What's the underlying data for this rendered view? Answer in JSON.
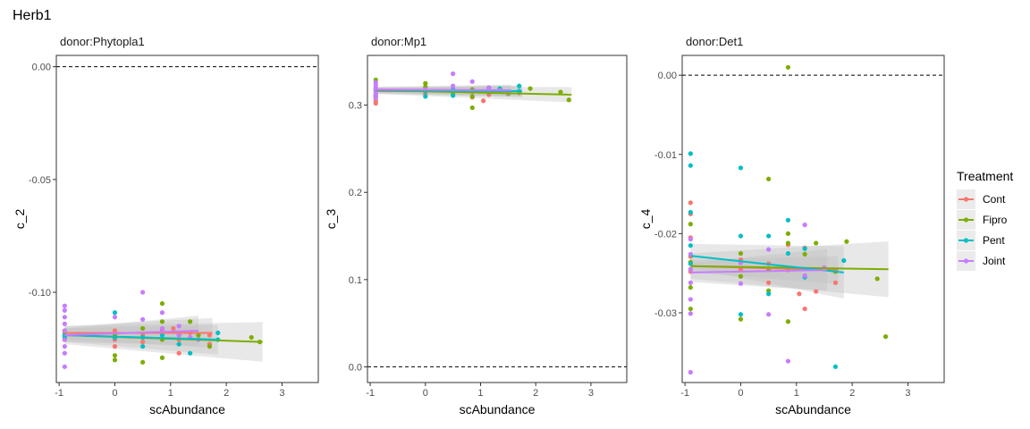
{
  "title": "Herb1",
  "colors": {
    "Cont": "#F8766D",
    "Fipro": "#7CAE00",
    "Pent": "#00BFC4",
    "Joint": "#C77CFF",
    "ribbon": "#bdbdbd",
    "panel_border": "#333333",
    "reference_line": "#000000"
  },
  "legend": {
    "title": "Treatment",
    "entries": [
      "Cont",
      "Fipro",
      "Pent",
      "Joint"
    ],
    "placement": "right"
  },
  "chart_data": [
    {
      "type": "scatter",
      "title": "donor:Phytopla1",
      "xlabel": "scAbundance",
      "ylabel": "c_2",
      "xlim": [
        -1.05,
        3.65
      ],
      "ylim": [
        -0.14,
        0.005
      ],
      "xticks": [
        -1,
        0,
        1,
        2,
        3
      ],
      "yticks": [
        0.0,
        -0.05,
        -0.1
      ],
      "ytick_labels": [
        "0.00",
        "-0.05",
        "-0.10"
      ],
      "reference_line_y": 0,
      "grid": false,
      "series": [
        {
          "name": "Cont",
          "points": [
            [
              -0.9,
              -0.118
            ],
            [
              -0.9,
              -0.121
            ],
            [
              0,
              -0.117
            ],
            [
              0,
              -0.121
            ],
            [
              0,
              -0.124
            ],
            [
              0.5,
              -0.119
            ],
            [
              0.5,
              -0.122
            ],
            [
              0.85,
              -0.117
            ],
            [
              1.05,
              -0.116
            ],
            [
              1.15,
              -0.121
            ],
            [
              1.15,
              -0.127
            ],
            [
              1.35,
              -0.118
            ],
            [
              1.7,
              -0.119
            ],
            [
              1.7,
              -0.123
            ]
          ],
          "fit": {
            "x": [
              -0.9,
              1.75
            ],
            "y": [
              -0.118,
              -0.118
            ],
            "ci": 0.003
          }
        },
        {
          "name": "Fipro",
          "points": [
            [
              -0.9,
              -0.117
            ],
            [
              -0.9,
              -0.119
            ],
            [
              0,
              -0.119
            ],
            [
              0,
              -0.128
            ],
            [
              0,
              -0.13
            ],
            [
              0.5,
              -0.116
            ],
            [
              0.5,
              -0.131
            ],
            [
              0.85,
              -0.105
            ],
            [
              0.85,
              -0.113
            ],
            [
              0.85,
              -0.121
            ],
            [
              0.85,
              -0.129
            ],
            [
              1.35,
              -0.113
            ],
            [
              1.5,
              -0.119
            ],
            [
              1.7,
              -0.124
            ],
            [
              2.45,
              -0.12
            ],
            [
              2.6,
              -0.122
            ]
          ],
          "fit": {
            "x": [
              -0.9,
              2.65
            ],
            "y": [
              -0.119,
              -0.122
            ],
            "ci": 0.004
          }
        },
        {
          "name": "Pent",
          "points": [
            [
              -0.9,
              -0.119
            ],
            [
              -0.9,
              -0.12
            ],
            [
              0,
              -0.109
            ],
            [
              0,
              -0.12
            ],
            [
              0.5,
              -0.12
            ],
            [
              0.5,
              -0.124
            ],
            [
              0.85,
              -0.119
            ],
            [
              1.15,
              -0.119
            ],
            [
              1.15,
              -0.123
            ],
            [
              1.35,
              -0.127
            ],
            [
              1.85,
              -0.118
            ],
            [
              1.85,
              -0.121
            ]
          ],
          "fit": {
            "x": [
              -0.9,
              1.85
            ],
            "y": [
              -0.119,
              -0.121
            ],
            "ci": 0.003
          }
        },
        {
          "name": "Joint",
          "points": [
            [
              -0.9,
              -0.106
            ],
            [
              -0.9,
              -0.108
            ],
            [
              -0.9,
              -0.111
            ],
            [
              -0.9,
              -0.114
            ],
            [
              -0.9,
              -0.117
            ],
            [
              -0.9,
              -0.121
            ],
            [
              -0.9,
              -0.124
            ],
            [
              -0.9,
              -0.127
            ],
            [
              -0.9,
              -0.133
            ],
            [
              0,
              -0.111
            ],
            [
              0.5,
              -0.1
            ],
            [
              0.5,
              -0.112
            ],
            [
              0.85,
              -0.109
            ],
            [
              0.85,
              -0.116
            ],
            [
              1.15,
              -0.115
            ],
            [
              1.15,
              -0.119
            ],
            [
              1.35,
              -0.12
            ],
            [
              1.5,
              -0.121
            ]
          ],
          "fit": {
            "x": [
              -0.9,
              1.5
            ],
            "y": [
              -0.119,
              -0.117
            ],
            "ci": 0.003
          }
        }
      ]
    },
    {
      "type": "scatter",
      "title": "donor:Mp1",
      "xlabel": "scAbundance",
      "ylabel": "c_3",
      "xlim": [
        -1.05,
        3.65
      ],
      "ylim": [
        -0.018,
        0.357
      ],
      "xticks": [
        -1,
        0,
        1,
        2,
        3
      ],
      "yticks": [
        0.0,
        0.1,
        0.2,
        0.3
      ],
      "ytick_labels": [
        "0.0",
        "0.1",
        "0.2",
        "0.3"
      ],
      "reference_line_y": 0,
      "grid": false,
      "series": [
        {
          "name": "Cont",
          "points": [
            [
              -0.9,
              0.302
            ],
            [
              -0.9,
              0.305
            ],
            [
              -0.9,
              0.31
            ],
            [
              -0.9,
              0.316
            ],
            [
              0,
              0.313
            ],
            [
              0,
              0.318
            ],
            [
              0.5,
              0.311
            ],
            [
              0.5,
              0.317
            ],
            [
              0.85,
              0.309
            ],
            [
              1.05,
              0.305
            ],
            [
              1.15,
              0.312
            ],
            [
              1.35,
              0.318
            ],
            [
              1.7,
              0.314
            ]
          ],
          "fit": {
            "x": [
              -0.9,
              1.75
            ],
            "y": [
              0.316,
              0.316
            ],
            "ci": 0.003
          }
        },
        {
          "name": "Fipro",
          "points": [
            [
              -0.9,
              0.329
            ],
            [
              -0.9,
              0.31
            ],
            [
              0,
              0.325
            ],
            [
              0,
              0.321
            ],
            [
              0.5,
              0.318
            ],
            [
              0.5,
              0.314
            ],
            [
              0.85,
              0.297
            ],
            [
              0.85,
              0.31
            ],
            [
              0.85,
              0.318
            ],
            [
              1.35,
              0.316
            ],
            [
              1.5,
              0.313
            ],
            [
              1.9,
              0.319
            ],
            [
              2.45,
              0.315
            ],
            [
              2.6,
              0.306
            ]
          ],
          "fit": {
            "x": [
              -0.9,
              2.65
            ],
            "y": [
              0.317,
              0.312
            ],
            "ci": 0.004
          }
        },
        {
          "name": "Pent",
          "points": [
            [
              -0.9,
              0.318
            ],
            [
              -0.9,
              0.312
            ],
            [
              0,
              0.316
            ],
            [
              0,
              0.31
            ],
            [
              0.5,
              0.311
            ],
            [
              0.5,
              0.318
            ],
            [
              0.85,
              0.316
            ],
            [
              1.15,
              0.315
            ],
            [
              1.15,
              0.32
            ],
            [
              1.35,
              0.319
            ],
            [
              1.7,
              0.322
            ],
            [
              1.7,
              0.316
            ]
          ],
          "fit": {
            "x": [
              -0.9,
              1.75
            ],
            "y": [
              0.317,
              0.316
            ],
            "ci": 0.003
          }
        },
        {
          "name": "Joint",
          "points": [
            [
              -0.9,
              0.326
            ],
            [
              -0.9,
              0.323
            ],
            [
              -0.9,
              0.32
            ],
            [
              -0.9,
              0.318
            ],
            [
              -0.9,
              0.315
            ],
            [
              -0.9,
              0.312
            ],
            [
              -0.9,
              0.308
            ],
            [
              0,
              0.318
            ],
            [
              0.5,
              0.336
            ],
            [
              0.5,
              0.322
            ],
            [
              0.85,
              0.327
            ],
            [
              0.85,
              0.315
            ],
            [
              1.15,
              0.32
            ],
            [
              1.35,
              0.317
            ],
            [
              1.5,
              0.314
            ]
          ],
          "fit": {
            "x": [
              -0.9,
              1.55
            ],
            "y": [
              0.318,
              0.317
            ],
            "ci": 0.003
          }
        }
      ]
    },
    {
      "type": "scatter",
      "title": "donor:Det1",
      "xlabel": "scAbundance",
      "ylabel": "c_4",
      "xlim": [
        -1.05,
        3.65
      ],
      "ylim": [
        -0.0388,
        0.0025
      ],
      "xticks": [
        -1,
        0,
        1,
        2,
        3
      ],
      "yticks": [
        0.0,
        -0.01,
        -0.02,
        -0.03
      ],
      "ytick_labels": [
        "0.00",
        "-0.01",
        "-0.02",
        "-0.03"
      ],
      "reference_line_y": 0,
      "grid": false,
      "series": [
        {
          "name": "Cont",
          "points": [
            [
              -0.9,
              -0.0161
            ],
            [
              -0.9,
              -0.0175
            ],
            [
              -0.9,
              -0.0205
            ],
            [
              -0.9,
              -0.0229
            ],
            [
              -0.9,
              -0.0248
            ],
            [
              0,
              -0.0233
            ],
            [
              0,
              -0.0245
            ],
            [
              0.5,
              -0.0238
            ],
            [
              0.5,
              -0.0262
            ],
            [
              0.85,
              -0.0214
            ],
            [
              0.85,
              -0.0246
            ],
            [
              1.05,
              -0.0276
            ],
            [
              1.15,
              -0.0218
            ],
            [
              1.15,
              -0.0295
            ],
            [
              1.35,
              -0.0273
            ],
            [
              1.7,
              -0.0262
            ]
          ],
          "fit": {
            "x": [
              -0.9,
              1.75
            ],
            "y": [
              -0.0241,
              -0.0246
            ],
            "ci": 0.0008
          }
        },
        {
          "name": "Fipro",
          "points": [
            [
              -0.9,
              -0.0188
            ],
            [
              -0.9,
              -0.0236
            ],
            [
              -0.9,
              -0.0268
            ],
            [
              -0.9,
              -0.0295
            ],
            [
              0,
              -0.0225
            ],
            [
              0,
              -0.0308
            ],
            [
              0,
              -0.0254
            ],
            [
              0.5,
              -0.0131
            ],
            [
              0.5,
              -0.0245
            ],
            [
              0.5,
              -0.0272
            ],
            [
              0.85,
              0.001
            ],
            [
              0.85,
              -0.02
            ],
            [
              0.85,
              -0.0212
            ],
            [
              0.85,
              -0.0311
            ],
            [
              1.15,
              -0.0226
            ],
            [
              1.35,
              -0.0212
            ],
            [
              1.7,
              -0.0248
            ],
            [
              1.9,
              -0.021
            ],
            [
              2.45,
              -0.0257
            ],
            [
              2.6,
              -0.033
            ]
          ],
          "fit": {
            "x": [
              -0.9,
              2.65
            ],
            "y": [
              -0.0241,
              -0.0245
            ],
            "ci": 0.0016
          }
        },
        {
          "name": "Pent",
          "points": [
            [
              -0.9,
              -0.0099
            ],
            [
              -0.9,
              -0.0114
            ],
            [
              -0.9,
              -0.0173
            ],
            [
              -0.9,
              -0.0215
            ],
            [
              -0.9,
              -0.0238
            ],
            [
              0,
              -0.0117
            ],
            [
              0,
              -0.0203
            ],
            [
              0,
              -0.0302
            ],
            [
              0.5,
              -0.0203
            ],
            [
              0.5,
              -0.0276
            ],
            [
              0.85,
              -0.0183
            ],
            [
              0.85,
              -0.0225
            ],
            [
              1.15,
              -0.0219
            ],
            [
              1.15,
              -0.0255
            ],
            [
              1.7,
              -0.0368
            ],
            [
              1.85,
              -0.0234
            ]
          ],
          "fit": {
            "x": [
              -0.9,
              1.85
            ],
            "y": [
              -0.0228,
              -0.0249
            ],
            "ci": 0.0015
          }
        },
        {
          "name": "Joint",
          "points": [
            [
              -0.9,
              -0.0207
            ],
            [
              -0.9,
              -0.0226
            ],
            [
              -0.9,
              -0.0245
            ],
            [
              -0.9,
              -0.0262
            ],
            [
              -0.9,
              -0.0283
            ],
            [
              -0.9,
              -0.0301
            ],
            [
              -0.9,
              -0.0375
            ],
            [
              0,
              -0.0237
            ],
            [
              0,
              -0.0263
            ],
            [
              0.5,
              -0.022
            ],
            [
              0.5,
              -0.0302
            ],
            [
              0.85,
              -0.0361
            ],
            [
              0.85,
              -0.0243
            ],
            [
              1.15,
              -0.0189
            ],
            [
              1.15,
              -0.0253
            ],
            [
              1.5,
              -0.0243
            ]
          ],
          "fit": {
            "x": [
              -0.9,
              1.55
            ],
            "y": [
              -0.0249,
              -0.0246
            ],
            "ci": 0.0012
          }
        }
      ]
    }
  ]
}
